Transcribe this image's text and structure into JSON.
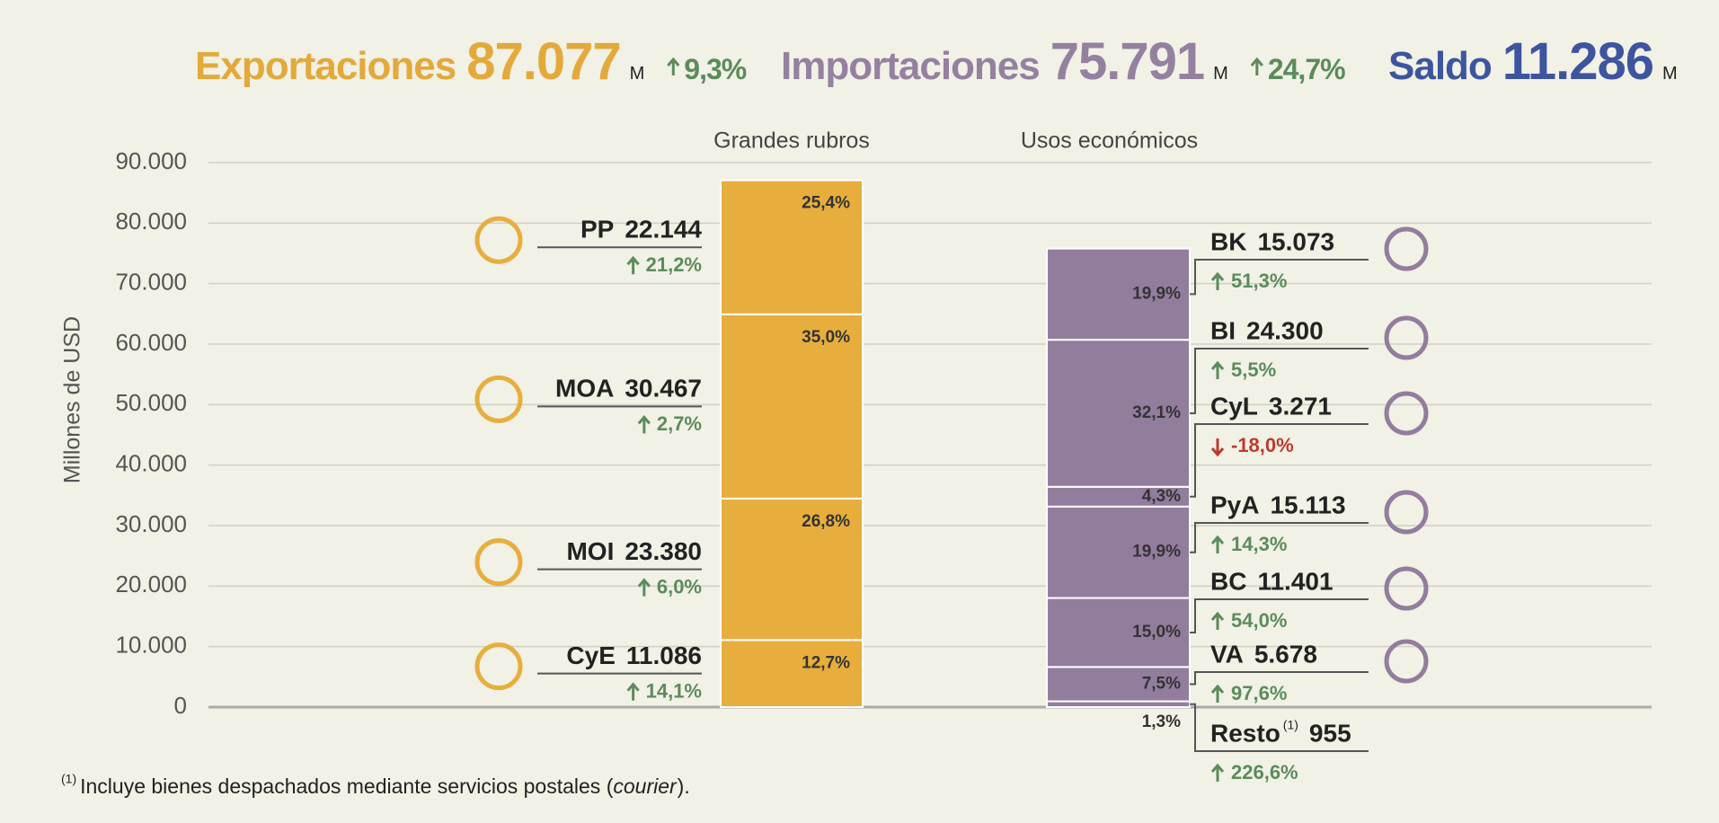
{
  "chart_data": {
    "type": "stacked_bar",
    "summary": [
      {
        "name": "Exportaciones",
        "value": "87.077",
        "unit": "M",
        "change": "9,3%",
        "trend": "up",
        "color": "#e3a93a"
      },
      {
        "name": "Importaciones",
        "value": "75.791",
        "unit": "M",
        "change": "24,7%",
        "trend": "up",
        "color": "#94819f"
      },
      {
        "name": "Saldo",
        "value": "11.286",
        "unit": "M",
        "color": "#3d55a0"
      }
    ],
    "ylabel": "Millones de USD",
    "ylim": [
      0,
      90000
    ],
    "yticks": [
      0,
      {
        "value": 10000,
        "label": "10.000"
      },
      {
        "value": 20000,
        "label": "20.000"
      },
      {
        "value": 30000,
        "label": "30.000"
      },
      {
        "value": 40000,
        "label": "40.000"
      },
      {
        "value": 50000,
        "label": "50.000"
      },
      {
        "value": 60000,
        "label": "60.000"
      },
      {
        "value": 70000,
        "label": "70.000"
      },
      {
        "value": 80000,
        "label": "80.000"
      },
      {
        "value": 90000,
        "label": "90.000"
      }
    ],
    "grid": true,
    "stacks": [
      {
        "name": "Grandes rubros",
        "color": "#e7ae3d",
        "segments": [
          {
            "name": "CyE",
            "value": 11086,
            "value_label": "11.086",
            "share": "12,7%",
            "change": "14,1%",
            "trend": "up"
          },
          {
            "name": "MOI",
            "value": 23380,
            "value_label": "23.380",
            "share": "26,8%",
            "change": "6,0%",
            "trend": "up"
          },
          {
            "name": "MOA",
            "value": 30467,
            "value_label": "30.467",
            "share": "35,0%",
            "change": "2,7%",
            "trend": "up"
          },
          {
            "name": "PP",
            "value": 22144,
            "value_label": "22.144",
            "share": "25,4%",
            "change": "21,2%",
            "trend": "up"
          }
        ]
      },
      {
        "name": "Usos económicos",
        "color": "#937d9d",
        "segments": [
          {
            "name": "Resto",
            "note_mark": "(1)",
            "value": 955,
            "value_label": "955",
            "share": "1,3%",
            "change": "226,6%",
            "trend": "up"
          },
          {
            "name": "VA",
            "value": 5678,
            "value_label": "5.678",
            "share": "7,5%",
            "change": "97,6%",
            "trend": "up"
          },
          {
            "name": "BC",
            "value": 11401,
            "value_label": "11.401",
            "share": "15,0%",
            "change": "54,0%",
            "trend": "up"
          },
          {
            "name": "PyA",
            "value": 15113,
            "value_label": "15.113",
            "share": "19,9%",
            "change": "14,3%",
            "trend": "up"
          },
          {
            "name": "CyL",
            "value": 3271,
            "value_label": "3.271",
            "share": "4,3%",
            "change": "-18,0%",
            "trend": "down"
          },
          {
            "name": "BI",
            "value": 24300,
            "value_label": "24.300",
            "share": "32,1%",
            "change": "5,5%",
            "trend": "up"
          },
          {
            "name": "BK",
            "value": 15073,
            "value_label": "15.073",
            "share": "19,9%",
            "change": "51,3%",
            "trend": "up"
          }
        ]
      }
    ],
    "footnote": {
      "mark": "(1)",
      "text": "Incluye bienes despachados mediante servicios postales (",
      "italic": "courier",
      "end": ")."
    }
  }
}
